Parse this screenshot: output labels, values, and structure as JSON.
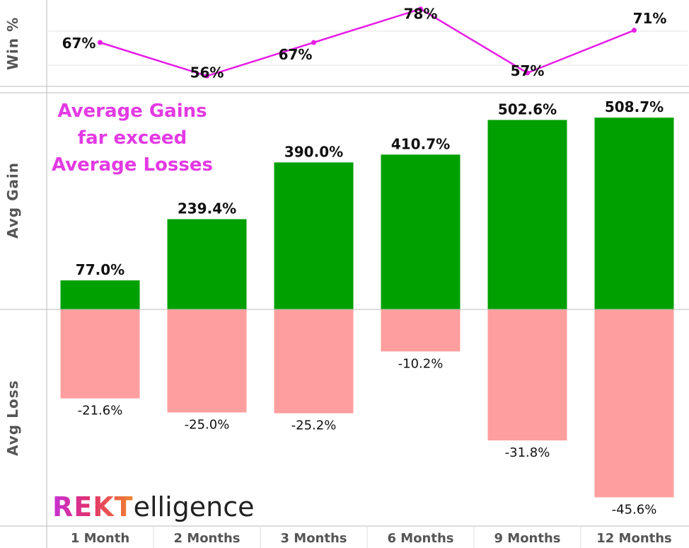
{
  "chart_data": {
    "type": "bar",
    "categories": [
      "1 Month",
      "2 Months",
      "3 Months",
      "6 Months",
      "9 Months",
      "12 Months"
    ],
    "win_pct": {
      "axis_label": "Win %",
      "type": "line",
      "values": [
        67,
        56,
        67,
        78,
        57,
        71
      ],
      "labels": [
        "67%",
        "56%",
        "67%",
        "78%",
        "57%",
        "71%"
      ],
      "color": "#e61ee6"
    },
    "avg_gain": {
      "axis_label": "Avg Gain",
      "values": [
        77.0,
        239.4,
        390.0,
        410.7,
        502.6,
        508.7
      ],
      "labels": [
        "77.0%",
        "239.4%",
        "390.0%",
        "410.7%",
        "502.6%",
        "508.7%"
      ],
      "color": "#00a000",
      "ylim": [
        0,
        560
      ]
    },
    "avg_loss": {
      "axis_label": "Avg Loss",
      "values": [
        -21.6,
        -25.0,
        -25.2,
        -10.2,
        -31.8,
        -45.6
      ],
      "labels": [
        "-21.6%",
        "-25.0%",
        "-25.2%",
        "-10.2%",
        "-31.8%",
        "-45.6%"
      ],
      "color": "#ff9e9e",
      "ylim": [
        -52,
        0
      ]
    },
    "grid": true
  },
  "annotation": {
    "lines": [
      "Average Gains",
      "far exceed",
      "Average Losses"
    ],
    "color": "#e33ae3"
  },
  "logo": {
    "part1": "REKT",
    "part2": "elligence"
  }
}
